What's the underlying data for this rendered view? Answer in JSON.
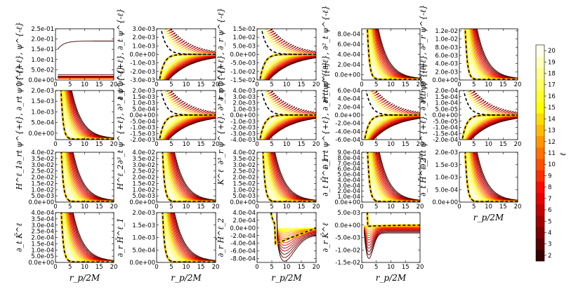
{
  "chart_data": {
    "type": "line",
    "title": "",
    "xlabel": "r_p/2M",
    "colorbar": {
      "label": "ℓ",
      "ticks": [
        "2",
        "3",
        "4",
        "5",
        "6",
        "7",
        "8",
        "9",
        "10",
        "11",
        "12",
        "13",
        "14",
        "15",
        "16",
        "17",
        "18",
        "19",
        "20"
      ],
      "range": [
        2,
        20
      ],
      "colormap": "hot"
    },
    "legend": "none; curves colored by ℓ via colorbar at right; black dashed = sum/limit curve",
    "panels": [
      {
        "id": "psi",
        "ylabel": "ψ^{+ℓ}, ψ^{-ℓ}",
        "xlim": [
          0,
          20
        ],
        "ylim": [
          0,
          0.25
        ],
        "yticks": [
          "0.0e+00",
          "5.0e-02",
          "1.0e-01",
          "1.5e-01",
          "2.0e-01",
          "2.5e-01"
        ],
        "xticks": [
          "0",
          "5",
          "10",
          "15",
          "20"
        ],
        "shape": "flat"
      },
      {
        "id": "dt_psi",
        "ylabel": "∂_t ψ^{+ℓ}, ∂_t ψ^{-ℓ}",
        "xlim": [
          0,
          20
        ],
        "ylim": [
          -0.003,
          0.003
        ],
        "yticks": [
          "-3.0e-03",
          "-2.0e-03",
          "-1.0e-03",
          "0.0e+00",
          "1.0e-03",
          "2.0e-03",
          "3.0e-03"
        ],
        "xticks": [
          "0",
          "5",
          "10",
          "15",
          "20"
        ],
        "shape": "split"
      },
      {
        "id": "dr_psi",
        "ylabel": "∂_r ψ^{+ℓ}, ∂_r ψ^{-ℓ}",
        "xlim": [
          0,
          20
        ],
        "ylim": [
          -0.015,
          0.015
        ],
        "yticks": [
          "-1.5e-02",
          "-1.0e-02",
          "-5.0e-03",
          "0.0e+00",
          "5.0e-03",
          "1.0e-02",
          "1.5e-02"
        ],
        "xticks": [
          "0",
          "5",
          "10",
          "15",
          "20"
        ],
        "shape": "split"
      },
      {
        "id": "dtt_psi",
        "ylabel": "∂²_t ψ^{+ℓ}, ∂²_t ψ^{-ℓ}",
        "xlim": [
          0,
          20
        ],
        "ylim": [
          -0.0001,
          0.0009
        ],
        "yticks": [
          "0.0e+00",
          "2.0e-04",
          "4.0e-04",
          "6.0e-04",
          "8.0e-04"
        ],
        "xticks": [
          "0",
          "5",
          "10",
          "15",
          "20"
        ],
        "shape": "decay"
      },
      {
        "id": "drr_psi",
        "ylabel": "∂²_r ψ^{+ℓ}, ∂²_r ψ^{-ℓ}",
        "xlim": [
          0,
          20
        ],
        "ylim": [
          0,
          0.0125
        ],
        "yticks": [
          "0.0e+00",
          "2.0e-03",
          "4.0e-03",
          "6.0e-03",
          "8.0e-03",
          "1.0e-02",
          "1.2e-02"
        ],
        "xticks": [
          "0",
          "5",
          "10",
          "15",
          "20"
        ],
        "shape": "decay"
      },
      {
        "id": "drt_psi",
        "ylabel": "∂_rt ψ^{+ℓ}, ∂_rt ψ^{-ℓ}",
        "xlim": [
          0,
          20
        ],
        "ylim": [
          -0.0003,
          0.002
        ],
        "yticks": [
          "0.0e+00",
          "5.0e-04",
          "1.0e-03",
          "1.5e-03",
          "2.0e-03"
        ],
        "xticks": [
          "0",
          "5",
          "10",
          "15",
          "20"
        ],
        "shape": "decay"
      },
      {
        "id": "dttt_psi",
        "ylabel": "∂³_t ψ^{+ℓ}, ∂³_t ψ^{-ℓ}",
        "xlim": [
          0,
          20
        ],
        "ylim": [
          -0.002,
          0.002
        ],
        "yticks": [
          "-2.0e-03",
          "-1.5e-03",
          "-1.0e-03",
          "-5.0e-04",
          "0.0e+00",
          "5.0e-04",
          "1.0e-03",
          "1.5e-03",
          "2.0e-03"
        ],
        "xticks": [
          "0",
          "5",
          "10",
          "15",
          "20"
        ],
        "shape": "split"
      },
      {
        "id": "drrr_psi",
        "ylabel": "∂³_r ψ^{+ℓ}, ∂³_r ψ^{-ℓ}",
        "xlim": [
          0,
          20
        ],
        "ylim": [
          -0.004,
          0.004
        ],
        "yticks": [
          "-4.0e-03",
          "-3.0e-03",
          "-2.0e-03",
          "-1.0e-03",
          "0.0e+00",
          "1.0e-03",
          "2.0e-03",
          "3.0e-03",
          "4.0e-03"
        ],
        "xticks": [
          "0",
          "5",
          "10",
          "15",
          "20"
        ],
        "shape": "split"
      },
      {
        "id": "drrt_psi",
        "ylabel": "∂_rrt ψ^{+ℓ}, ∂_rrt ψ^{-ℓ}",
        "xlim": [
          0,
          20
        ],
        "ylim": [
          -0.0006,
          0.0006
        ],
        "yticks": [
          "-6.0e-04",
          "-4.0e-04",
          "-2.0e-04",
          "0.0e+00",
          "2.0e-04",
          "4.0e-04",
          "6.0e-04"
        ],
        "xticks": [
          "0",
          "5",
          "10",
          "15",
          "20"
        ],
        "shape": "split"
      },
      {
        "id": "drtt_psi",
        "ylabel": "∂_rtt ψ^{+ℓ}, ∂_rtt ψ^{-ℓ}",
        "xlim": [
          0,
          20
        ],
        "ylim": [
          -0.0002,
          0.0002
        ],
        "yticks": [
          "-2.0e-04",
          "-1.5e-04",
          "-1.0e-04",
          "-5.0e-05",
          "0.0e+00",
          "5.0e-05",
          "1.0e-04",
          "1.5e-04",
          "2.0e-04"
        ],
        "xticks": [
          "0",
          "5",
          "10",
          "15",
          "20"
        ],
        "shape": "split"
      },
      {
        "id": "H1",
        "ylabel": "H^ℓ_1",
        "xlim": [
          0,
          20
        ],
        "ylim": [
          0,
          0.04
        ],
        "yticks": [
          "0.0e+00",
          "5.0e-03",
          "1.0e-02",
          "1.5e-02",
          "2.0e-02",
          "2.5e-02",
          "3.0e-02",
          "3.5e-02",
          "4.0e-02"
        ],
        "xticks": [
          "0",
          "5",
          "10",
          "15",
          "20"
        ],
        "shape": "decay"
      },
      {
        "id": "H2",
        "ylabel": "H^ℓ_2",
        "xlim": [
          0,
          20
        ],
        "ylim": [
          0,
          0.04
        ],
        "yticks": [
          "0.0e+00",
          "5.0e-03",
          "1.0e-02",
          "1.5e-02",
          "2.0e-02",
          "2.5e-02",
          "3.0e-02",
          "3.5e-02",
          "4.0e-02"
        ],
        "xticks": [
          "0",
          "5",
          "10",
          "15",
          "20"
        ],
        "shape": "decay"
      },
      {
        "id": "K",
        "ylabel": "K^ℓ",
        "xlim": [
          0,
          20
        ],
        "ylim": [
          0,
          0.04
        ],
        "yticks": [
          "0.0e+00",
          "5.0e-03",
          "1.0e-02",
          "1.5e-02",
          "2.0e-02",
          "2.5e-02",
          "3.0e-02",
          "3.5e-02",
          "4.0e-02"
        ],
        "xticks": [
          "0",
          "5",
          "10",
          "15",
          "20"
        ],
        "shape": "decay"
      },
      {
        "id": "dt_H1bar",
        "ylabel": "∂_t H̄^ℓ_1",
        "xlim": [
          0,
          20
        ],
        "ylim": [
          0,
          0.0009
        ],
        "yticks": [
          "0.0e+00",
          "1.0e-04",
          "2.0e-04",
          "3.0e-04",
          "4.0e-04",
          "5.0e-04",
          "6.0e-04",
          "7.0e-04",
          "8.0e-04",
          "9.0e-04"
        ],
        "xticks": [
          "0",
          "5",
          "10",
          "15",
          "20"
        ],
        "shape": "decay"
      },
      {
        "id": "dt_H2bar",
        "ylabel": "∂_t H̄^ℓ_2",
        "xlim": [
          0,
          20
        ],
        "ylim": [
          0,
          0.002
        ],
        "yticks": [
          "0.0e+00",
          "5.0e-04",
          "1.0e-03",
          "1.5e-03",
          "2.0e-03"
        ],
        "xticks": [
          "0",
          "5",
          "10",
          "15",
          "20"
        ],
        "shape": "decay",
        "xlabel": "r_p/2M"
      },
      {
        "id": "dt_Kbar",
        "ylabel": "∂_t K̄^ℓ",
        "xlim": [
          0,
          20
        ],
        "ylim": [
          0,
          0.0004
        ],
        "yticks": [
          "0.0e+00",
          "5.0e-05",
          "1.0e-04",
          "1.5e-04",
          "2.0e-04",
          "2.5e-04",
          "3.0e-04",
          "3.5e-04",
          "4.0e-04"
        ],
        "xticks": [
          "0",
          "5",
          "10",
          "15",
          "20"
        ],
        "shape": "decay",
        "xlabel": "r_p/2M"
      },
      {
        "id": "dr_H1bar",
        "ylabel": "∂_r H̄^ℓ_1",
        "xlim": [
          0,
          20
        ],
        "ylim": [
          0,
          0.002
        ],
        "yticks": [
          "0.0e+00",
          "5.0e-04",
          "1.0e-03",
          "1.5e-03",
          "2.0e-03"
        ],
        "xticks": [
          "0",
          "5",
          "10",
          "15",
          "20"
        ],
        "shape": "decay",
        "xlabel": "r_p/2M"
      },
      {
        "id": "dr_H2bar",
        "ylabel": "∂_r H̄^ℓ_2",
        "xlim": [
          0,
          20
        ],
        "ylim": [
          -0.0009,
          0.0004
        ],
        "yticks": [
          "-8.0e-04",
          "-6.0e-04",
          "-4.0e-04",
          "-2.0e-04",
          "0.0e+00",
          "2.0e-04",
          "4.0e-04"
        ],
        "xticks": [
          "0",
          "5",
          "10",
          "15",
          "20"
        ],
        "shape": "dip",
        "xlabel": "r_p/2M"
      },
      {
        "id": "dr_Kbar",
        "ylabel": "∂_r K̄^ℓ",
        "xlim": [
          0,
          20
        ],
        "ylim": [
          -0.015,
          0.005
        ],
        "yticks": [
          "-1.5e-02",
          "-1.0e-02",
          "-5.0e-03",
          "0.0e+00",
          "5.0e-03"
        ],
        "xticks": [
          "0",
          "5",
          "10",
          "15",
          "20"
        ],
        "shape": "dip",
        "xlabel": "r_p/2M"
      }
    ]
  }
}
